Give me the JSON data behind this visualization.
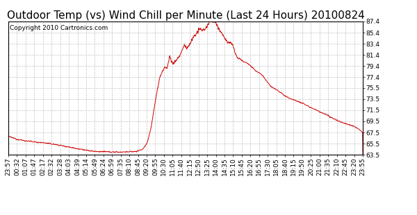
{
  "title": "Outdoor Temp (vs) Wind Chill per Minute (Last 24 Hours) 20100824",
  "copyright": "Copyright 2010 Cartronics.com",
  "line_color": "#cc0000",
  "background_color": "#ffffff",
  "plot_bg_color": "#ffffff",
  "grid_color": "#bbbbbb",
  "ylim": [
    63.5,
    87.4
  ],
  "yticks": [
    63.5,
    65.5,
    67.5,
    69.5,
    71.5,
    73.5,
    75.5,
    77.4,
    79.4,
    81.4,
    83.4,
    85.4,
    87.4
  ],
  "xtick_labels": [
    "23:57",
    "00:32",
    "01:07",
    "01:47",
    "02:17",
    "02:32",
    "03:28",
    "04:03",
    "04:39",
    "05:14",
    "05:49",
    "06:24",
    "06:59",
    "07:35",
    "08:10",
    "08:45",
    "09:20",
    "09:55",
    "10:30",
    "11:05",
    "11:40",
    "12:15",
    "12:50",
    "13:25",
    "14:00",
    "14:35",
    "15:10",
    "15:45",
    "16:20",
    "16:55",
    "17:30",
    "18:05",
    "18:40",
    "19:15",
    "19:50",
    "20:25",
    "21:00",
    "21:35",
    "22:10",
    "22:45",
    "23:20",
    "23:55"
  ],
  "title_fontsize": 11,
  "tick_fontsize": 6.5,
  "copyright_fontsize": 6.5
}
